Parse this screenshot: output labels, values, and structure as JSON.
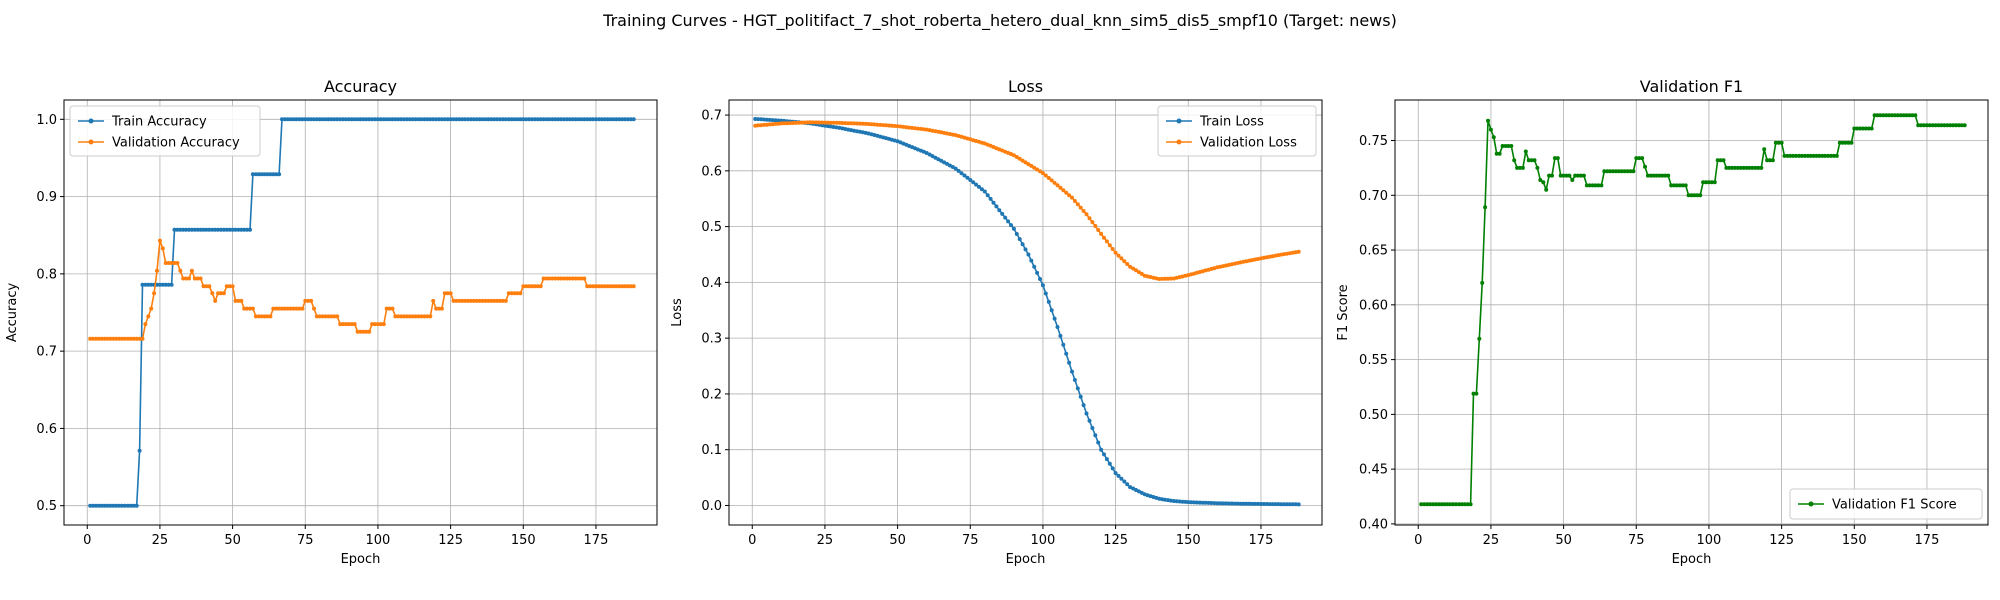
{
  "figure": {
    "suptitle": "Training Curves - HGT_politifact_7_shot_roberta_hetero_dual_knn_sim5_dis5_smpf10 (Target: news)"
  },
  "colors": {
    "blue": "#1f77b4",
    "orange": "#ff7f0e",
    "green": "#008000",
    "grid": "#b0b0b0"
  },
  "chart_data": [
    {
      "type": "line",
      "title": "Accuracy",
      "xlabel": "Epoch",
      "ylabel": "Accuracy",
      "xlim": [
        -8,
        196
      ],
      "ylim": [
        0.475,
        1.025
      ],
      "xticks": [
        0,
        25,
        50,
        75,
        100,
        125,
        150,
        175
      ],
      "yticks": [
        0.5,
        0.6,
        0.7,
        0.8,
        0.9,
        1.0
      ],
      "ytick_labels": [
        "0.5",
        "0.6",
        "0.7",
        "0.8",
        "0.9",
        "1.0"
      ],
      "grid": true,
      "legend": "upper left",
      "series": [
        {
          "name": "Train Accuracy",
          "color": "#1f77b4",
          "points": [
            [
              1,
              0.5
            ],
            [
              17,
              0.5
            ],
            [
              18,
              0.571
            ],
            [
              19,
              0.786
            ],
            [
              29,
              0.786
            ],
            [
              30,
              0.857
            ],
            [
              56,
              0.857
            ],
            [
              57,
              0.929
            ],
            [
              66,
              0.929
            ],
            [
              67,
              1.0
            ],
            [
              188,
              1.0
            ]
          ]
        },
        {
          "name": "Validation Accuracy",
          "color": "#ff7f0e",
          "points": [
            [
              1,
              0.716
            ],
            [
              18,
              0.716
            ],
            [
              19,
              0.716
            ],
            [
              20,
              0.735
            ],
            [
              21,
              0.745
            ],
            [
              22,
              0.755
            ],
            [
              23,
              0.775
            ],
            [
              24,
              0.804
            ],
            [
              25,
              0.843
            ],
            [
              26,
              0.833
            ],
            [
              27,
              0.814
            ],
            [
              31,
              0.814
            ],
            [
              32,
              0.804
            ],
            [
              33,
              0.794
            ],
            [
              35,
              0.794
            ],
            [
              36,
              0.804
            ],
            [
              37,
              0.794
            ],
            [
              39,
              0.794
            ],
            [
              40,
              0.784
            ],
            [
              42,
              0.784
            ],
            [
              43,
              0.775
            ],
            [
              44,
              0.765
            ],
            [
              45,
              0.775
            ],
            [
              47,
              0.775
            ],
            [
              48,
              0.784
            ],
            [
              50,
              0.784
            ],
            [
              51,
              0.765
            ],
            [
              53,
              0.765
            ],
            [
              54,
              0.755
            ],
            [
              57,
              0.755
            ],
            [
              58,
              0.745
            ],
            [
              63,
              0.745
            ],
            [
              64,
              0.755
            ],
            [
              74,
              0.755
            ],
            [
              75,
              0.765
            ],
            [
              77,
              0.765
            ],
            [
              78,
              0.755
            ],
            [
              79,
              0.745
            ],
            [
              86,
              0.745
            ],
            [
              87,
              0.735
            ],
            [
              92,
              0.735
            ],
            [
              93,
              0.725
            ],
            [
              97,
              0.725
            ],
            [
              98,
              0.735
            ],
            [
              102,
              0.735
            ],
            [
              103,
              0.755
            ],
            [
              105,
              0.755
            ],
            [
              106,
              0.745
            ],
            [
              118,
              0.745
            ],
            [
              119,
              0.765
            ],
            [
              120,
              0.755
            ],
            [
              122,
              0.755
            ],
            [
              123,
              0.775
            ],
            [
              125,
              0.775
            ],
            [
              126,
              0.765
            ],
            [
              144,
              0.765
            ],
            [
              145,
              0.775
            ],
            [
              149,
              0.775
            ],
            [
              150,
              0.784
            ],
            [
              156,
              0.784
            ],
            [
              157,
              0.794
            ],
            [
              171,
              0.794
            ],
            [
              172,
              0.784
            ],
            [
              188,
              0.784
            ]
          ]
        }
      ]
    },
    {
      "type": "line",
      "title": "Loss",
      "xlabel": "Epoch",
      "ylabel": "Loss",
      "xlim": [
        -8,
        196
      ],
      "ylim": [
        -0.035,
        0.727
      ],
      "xticks": [
        0,
        25,
        50,
        75,
        100,
        125,
        150,
        175
      ],
      "yticks": [
        0.0,
        0.1,
        0.2,
        0.3,
        0.4,
        0.5,
        0.6,
        0.7
      ],
      "ytick_labels": [
        "0.0",
        "0.1",
        "0.2",
        "0.3",
        "0.4",
        "0.5",
        "0.6",
        "0.7"
      ],
      "grid": true,
      "legend": "upper right",
      "series": [
        {
          "name": "Train Loss",
          "color": "#1f77b4",
          "points": [
            [
              1,
              0.693
            ],
            [
              10,
              0.69
            ],
            [
              20,
              0.685
            ],
            [
              30,
              0.677
            ],
            [
              40,
              0.667
            ],
            [
              50,
              0.653
            ],
            [
              60,
              0.632
            ],
            [
              70,
              0.604
            ],
            [
              80,
              0.563
            ],
            [
              90,
              0.496
            ],
            [
              95,
              0.45
            ],
            [
              100,
              0.395
            ],
            [
              105,
              0.32
            ],
            [
              110,
              0.24
            ],
            [
              115,
              0.165
            ],
            [
              120,
              0.1
            ],
            [
              125,
              0.058
            ],
            [
              130,
              0.033
            ],
            [
              135,
              0.02
            ],
            [
              140,
              0.012
            ],
            [
              145,
              0.008
            ],
            [
              150,
              0.006
            ],
            [
              160,
              0.004
            ],
            [
              170,
              0.003
            ],
            [
              188,
              0.002
            ]
          ]
        },
        {
          "name": "Validation Loss",
          "color": "#ff7f0e",
          "points": [
            [
              1,
              0.681
            ],
            [
              10,
              0.685
            ],
            [
              20,
              0.687
            ],
            [
              30,
              0.686
            ],
            [
              40,
              0.684
            ],
            [
              50,
              0.68
            ],
            [
              60,
              0.674
            ],
            [
              70,
              0.664
            ],
            [
              80,
              0.649
            ],
            [
              90,
              0.628
            ],
            [
              100,
              0.596
            ],
            [
              110,
              0.552
            ],
            [
              115,
              0.522
            ],
            [
              120,
              0.487
            ],
            [
              125,
              0.453
            ],
            [
              130,
              0.428
            ],
            [
              135,
              0.412
            ],
            [
              140,
              0.406
            ],
            [
              145,
              0.407
            ],
            [
              150,
              0.413
            ],
            [
              160,
              0.427
            ],
            [
              170,
              0.438
            ],
            [
              180,
              0.448
            ],
            [
              188,
              0.455
            ]
          ]
        }
      ]
    },
    {
      "type": "line",
      "title": "Validation F1",
      "xlabel": "Epoch",
      "ylabel": "F1 Score",
      "xlim": [
        -8,
        196
      ],
      "ylim": [
        0.399,
        0.787
      ],
      "xticks": [
        0,
        25,
        50,
        75,
        100,
        125,
        150,
        175
      ],
      "yticks": [
        0.4,
        0.45,
        0.5,
        0.55,
        0.6,
        0.65,
        0.7,
        0.75
      ],
      "ytick_labels": [
        "0.40",
        "0.45",
        "0.50",
        "0.55",
        "0.60",
        "0.65",
        "0.70",
        "0.75"
      ],
      "grid": true,
      "legend": "lower right",
      "series": [
        {
          "name": "Validation F1 Score",
          "color": "#008000",
          "points": [
            [
              1,
              0.418
            ],
            [
              18,
              0.418
            ],
            [
              19,
              0.519
            ],
            [
              20,
              0.519
            ],
            [
              21,
              0.569
            ],
            [
              22,
              0.62
            ],
            [
              23,
              0.689
            ],
            [
              24,
              0.768
            ],
            [
              25,
              0.76
            ],
            [
              26,
              0.753
            ],
            [
              27,
              0.738
            ],
            [
              28,
              0.738
            ],
            [
              29,
              0.745
            ],
            [
              32,
              0.745
            ],
            [
              33,
              0.732
            ],
            [
              34,
              0.725
            ],
            [
              36,
              0.725
            ],
            [
              37,
              0.74
            ],
            [
              38,
              0.732
            ],
            [
              40,
              0.732
            ],
            [
              41,
              0.725
            ],
            [
              42,
              0.714
            ],
            [
              43,
              0.712
            ],
            [
              44,
              0.705
            ],
            [
              45,
              0.718
            ],
            [
              46,
              0.718
            ],
            [
              47,
              0.734
            ],
            [
              48,
              0.734
            ],
            [
              49,
              0.718
            ],
            [
              52,
              0.718
            ],
            [
              53,
              0.714
            ],
            [
              54,
              0.718
            ],
            [
              57,
              0.718
            ],
            [
              58,
              0.709
            ],
            [
              63,
              0.709
            ],
            [
              64,
              0.722
            ],
            [
              74,
              0.722
            ],
            [
              75,
              0.734
            ],
            [
              77,
              0.734
            ],
            [
              78,
              0.726
            ],
            [
              79,
              0.718
            ],
            [
              86,
              0.718
            ],
            [
              87,
              0.709
            ],
            [
              92,
              0.709
            ],
            [
              93,
              0.7
            ],
            [
              97,
              0.7
            ],
            [
              98,
              0.712
            ],
            [
              102,
              0.712
            ],
            [
              103,
              0.732
            ],
            [
              105,
              0.732
            ],
            [
              106,
              0.725
            ],
            [
              118,
              0.725
            ],
            [
              119,
              0.742
            ],
            [
              120,
              0.732
            ],
            [
              122,
              0.732
            ],
            [
              123,
              0.748
            ],
            [
              125,
              0.748
            ],
            [
              126,
              0.736
            ],
            [
              144,
              0.736
            ],
            [
              145,
              0.748
            ],
            [
              149,
              0.748
            ],
            [
              150,
              0.761
            ],
            [
              156,
              0.761
            ],
            [
              157,
              0.773
            ],
            [
              171,
              0.773
            ],
            [
              172,
              0.764
            ],
            [
              188,
              0.764
            ]
          ]
        }
      ]
    }
  ]
}
